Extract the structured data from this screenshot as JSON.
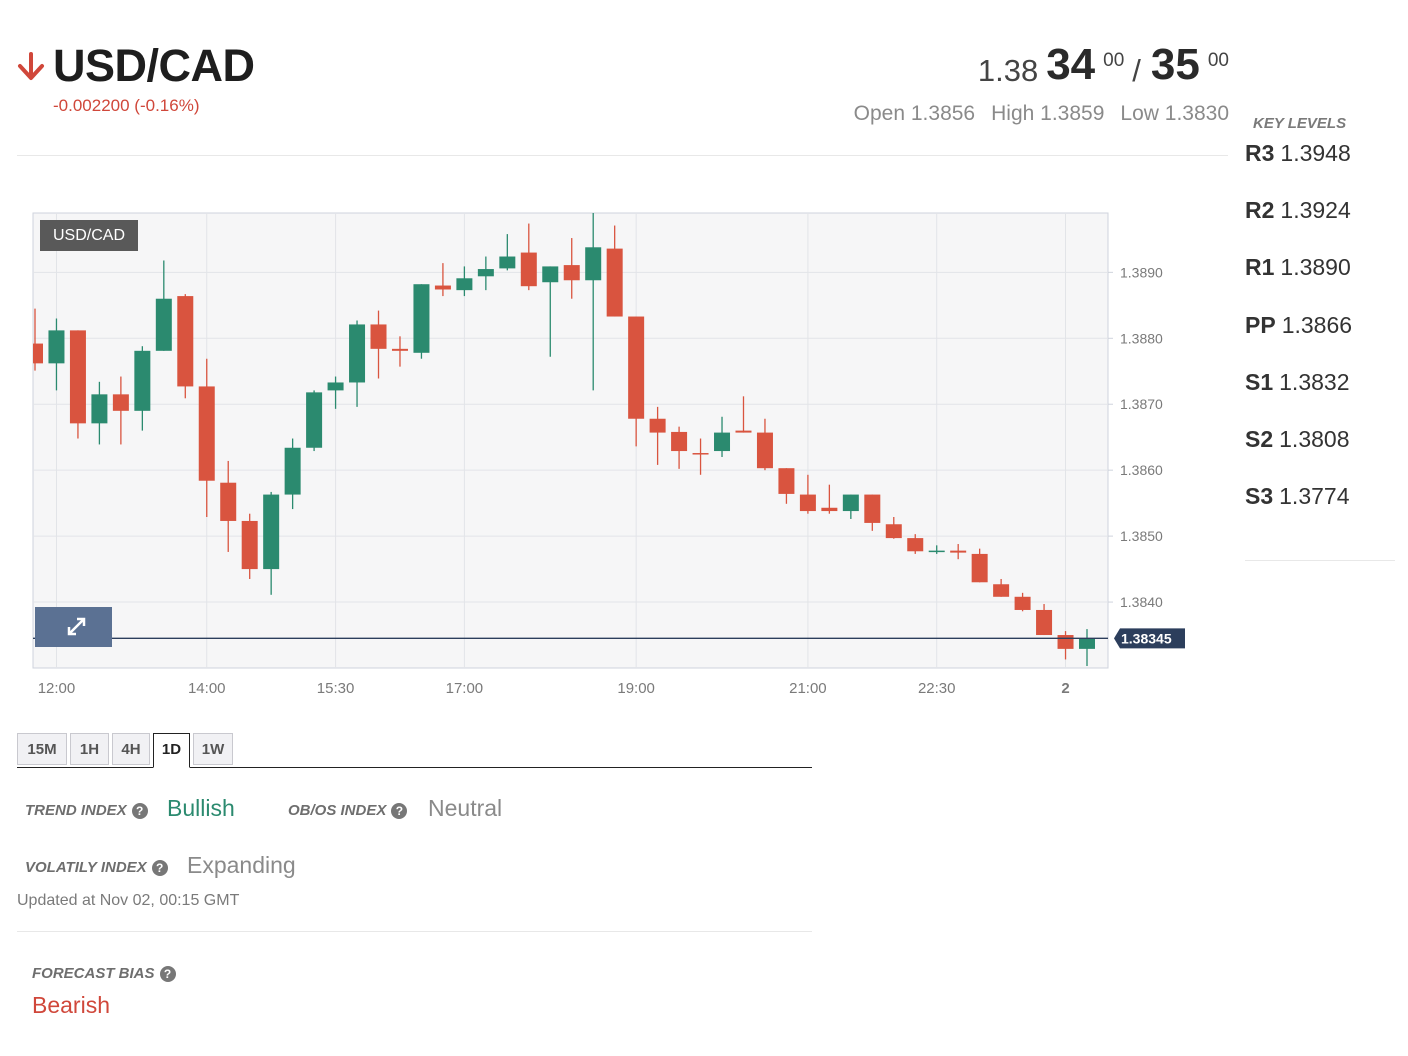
{
  "header": {
    "symbol": "USD/CAD",
    "change": "-0.002200 (-0.16%)"
  },
  "quote": {
    "bid_prefix": "1.38",
    "bid_pips": "34",
    "bid_fraction": "00",
    "separator": "/",
    "ask_pips": "35",
    "ask_fraction": "00"
  },
  "ohlc": [
    {
      "label": "Open",
      "value": "1.3856"
    },
    {
      "label": "High",
      "value": "1.3859"
    },
    {
      "label": "Low",
      "value": "1.3830"
    }
  ],
  "key_levels": {
    "title": "KEY LEVELS",
    "levels": [
      {
        "label": "R3",
        "value": "1.3948"
      },
      {
        "label": "R2",
        "value": "1.3924"
      },
      {
        "label": "R1",
        "value": "1.3890"
      },
      {
        "label": "PP",
        "value": "1.3866"
      },
      {
        "label": "S1",
        "value": "1.3832"
      },
      {
        "label": "S2",
        "value": "1.3808"
      },
      {
        "label": "S3",
        "value": "1.3774"
      }
    ]
  },
  "chart_data": {
    "type": "candlestick",
    "title": "USD/CAD",
    "up_color": "#2b8a6f",
    "down_color": "#d9543f",
    "grid": true,
    "categories": [
      null,
      "12:00",
      null,
      null,
      null,
      null,
      null,
      null,
      "14:00",
      null,
      null,
      null,
      null,
      null,
      "15:30",
      null,
      null,
      null,
      null,
      null,
      "17:00",
      null,
      null,
      null,
      null,
      null,
      null,
      null,
      "19:00",
      null,
      null,
      null,
      null,
      null,
      null,
      null,
      "21:00",
      null,
      null,
      null,
      null,
      null,
      "22:30",
      null,
      null,
      null,
      null,
      null,
      "2",
      null
    ],
    "open": [
      1.38792,
      1.38762,
      1.38812,
      1.38671,
      1.38715,
      1.3869,
      1.38781,
      1.38864,
      1.38727,
      1.38581,
      1.38523,
      1.3845,
      1.38563,
      1.38634,
      1.38721,
      1.38733,
      1.38821,
      1.38784,
      1.38778,
      1.3888,
      1.38873,
      1.38894,
      1.38906,
      1.3893,
      1.38885,
      1.38911,
      1.38888,
      1.38936,
      1.38833,
      1.38678,
      1.38658,
      1.38626,
      1.38629,
      1.3866,
      1.38657,
      1.38603,
      1.38563,
      1.38543,
      1.38538,
      1.38563,
      1.38518,
      1.38497,
      1.38476,
      1.38478,
      1.38473,
      1.38427,
      1.38408,
      1.38388,
      1.3835,
      1.38329
    ],
    "high": [
      1.38845,
      1.3883,
      1.38812,
      1.38734,
      1.38742,
      1.38788,
      1.38918,
      1.38867,
      1.38769,
      1.38614,
      1.38534,
      1.38567,
      1.38648,
      1.38721,
      1.38742,
      1.38827,
      1.38842,
      1.38803,
      1.38882,
      1.38914,
      1.38909,
      1.38924,
      1.38958,
      1.38974,
      1.38909,
      1.38952,
      1.3899,
      1.38971,
      1.38833,
      1.38696,
      1.38666,
      1.38648,
      1.38681,
      1.38712,
      1.38678,
      1.38603,
      1.38593,
      1.38578,
      1.38563,
      1.38563,
      1.38529,
      1.38503,
      1.38486,
      1.38488,
      1.38481,
      1.38435,
      1.38414,
      1.38397,
      1.38356,
      1.38359
    ],
    "low": [
      1.38751,
      1.38721,
      1.38648,
      1.38639,
      1.38639,
      1.3866,
      1.38781,
      1.38709,
      1.38529,
      1.38476,
      1.38435,
      1.38411,
      1.38541,
      1.38629,
      1.38693,
      1.38696,
      1.38739,
      1.38757,
      1.38769,
      1.38864,
      1.38864,
      1.38873,
      1.38903,
      1.38873,
      1.38772,
      1.3886,
      1.38721,
      1.38833,
      1.38636,
      1.38608,
      1.38602,
      1.38593,
      1.3862,
      1.38657,
      1.386,
      1.38549,
      1.38534,
      1.38534,
      1.38526,
      1.38508,
      1.38496,
      1.38473,
      1.38473,
      1.38465,
      1.3843,
      1.38408,
      1.38386,
      1.3835,
      1.38313,
      1.38303
    ],
    "close": [
      1.38762,
      1.38812,
      1.38671,
      1.38715,
      1.3869,
      1.38781,
      1.3886,
      1.38727,
      1.38584,
      1.38523,
      1.3845,
      1.38563,
      1.38634,
      1.38718,
      1.38733,
      1.38821,
      1.38784,
      1.38781,
      1.38882,
      1.38874,
      1.38891,
      1.38905,
      1.38924,
      1.38879,
      1.38909,
      1.38888,
      1.38938,
      1.38833,
      1.38678,
      1.38657,
      1.38629,
      1.38625,
      1.38657,
      1.38657,
      1.38603,
      1.38564,
      1.38538,
      1.38538,
      1.38563,
      1.3852,
      1.38497,
      1.38477,
      1.38478,
      1.38475,
      1.3843,
      1.38408,
      1.38388,
      1.3835,
      1.38329,
      1.38345
    ],
    "ylim": [
      1.383,
      1.3899
    ],
    "yticks": [
      {
        "value": 1.384,
        "label": "1.3840"
      },
      {
        "value": 1.385,
        "label": "1.3850"
      },
      {
        "value": 1.386,
        "label": "1.3860"
      },
      {
        "value": 1.387,
        "label": "1.3870"
      },
      {
        "value": 1.388,
        "label": "1.3880"
      },
      {
        "value": 1.389,
        "label": "1.3890"
      }
    ],
    "last_price": 1.38345,
    "last_price_color": "#2c3e5c"
  },
  "timeframes": {
    "tabs": [
      "15M",
      "1H",
      "4H",
      "1D",
      "1W"
    ],
    "active": "1D"
  },
  "indices": {
    "trend": {
      "label": "TREND INDEX",
      "value": "Bullish"
    },
    "obos": {
      "label": "OB/OS INDEX",
      "value": "Neutral"
    },
    "volatility": {
      "label": "VOLATILY INDEX",
      "value": "Expanding"
    },
    "updated": "Updated at Nov 02, 00:15 GMT"
  },
  "forecast": {
    "label": "FORECAST BIAS",
    "value": "Bearish"
  }
}
